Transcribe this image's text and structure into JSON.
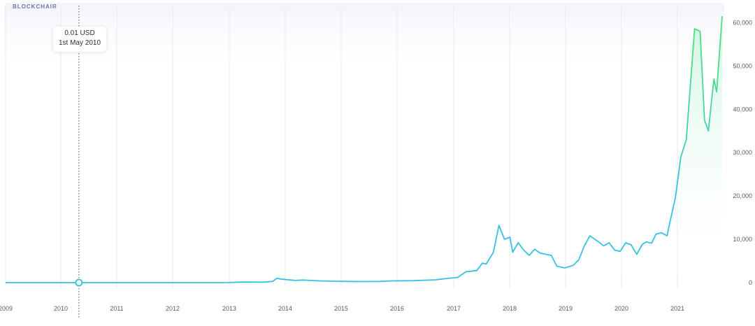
{
  "header": {
    "brand": "BLOCKCHAIR"
  },
  "tooltip": {
    "value": "0.01 USD",
    "date": "1st May 2010"
  },
  "colors": {
    "line": "#35c2e0",
    "line_high": "#4ee07a",
    "grid": "#e8eaee",
    "area": "#d9f7ec"
  },
  "chart_data": {
    "type": "line",
    "title": "",
    "xlabel": "",
    "ylabel": "",
    "x_ticks": [
      "2009",
      "2010",
      "2011",
      "2012",
      "2013",
      "2014",
      "2015",
      "2016",
      "2017",
      "2018",
      "2019",
      "2020",
      "2021"
    ],
    "y_ticks": [
      "0",
      "10,000",
      "20,000",
      "30,000",
      "40,000",
      "50,000",
      "60,000"
    ],
    "ylim": [
      0,
      62000
    ],
    "xlim": [
      2009.0,
      2021.85
    ],
    "grid": true,
    "highlight": {
      "x": 2010.33,
      "y": 0.01
    },
    "series": [
      {
        "points": [
          [
            2009.0,
            0
          ],
          [
            2010.33,
            0.01
          ],
          [
            2011.0,
            1
          ],
          [
            2012.0,
            5
          ],
          [
            2013.0,
            13
          ],
          [
            2013.3,
            130
          ],
          [
            2013.7,
            120
          ],
          [
            2013.85,
            300
          ],
          [
            2013.92,
            1000
          ],
          [
            2014.0,
            800
          ],
          [
            2014.1,
            700
          ],
          [
            2014.25,
            500
          ],
          [
            2014.4,
            600
          ],
          [
            2014.7,
            400
          ],
          [
            2015.0,
            300
          ],
          [
            2015.4,
            240
          ],
          [
            2015.8,
            280
          ],
          [
            2016.0,
            400
          ],
          [
            2016.4,
            450
          ],
          [
            2016.8,
            650
          ],
          [
            2017.0,
            950
          ],
          [
            2017.2,
            1200
          ],
          [
            2017.35,
            2500
          ],
          [
            2017.55,
            2800
          ],
          [
            2017.65,
            4500
          ],
          [
            2017.72,
            4300
          ],
          [
            2017.85,
            7000
          ],
          [
            2017.95,
            13200
          ],
          [
            2018.05,
            10000
          ],
          [
            2018.15,
            10500
          ],
          [
            2018.2,
            7000
          ],
          [
            2018.3,
            9200
          ],
          [
            2018.4,
            7500
          ],
          [
            2018.5,
            6300
          ],
          [
            2018.6,
            7700
          ],
          [
            2018.7,
            6800
          ],
          [
            2018.9,
            6300
          ],
          [
            2019.0,
            3800
          ],
          [
            2019.1,
            3500
          ],
          [
            2019.15,
            3400
          ],
          [
            2019.3,
            4000
          ],
          [
            2019.4,
            5300
          ],
          [
            2019.5,
            8500
          ],
          [
            2019.6,
            10800
          ],
          [
            2019.75,
            9500
          ],
          [
            2019.85,
            8500
          ],
          [
            2019.95,
            9200
          ],
          [
            2020.05,
            7500
          ],
          [
            2020.15,
            7200
          ],
          [
            2020.25,
            9200
          ],
          [
            2020.35,
            8700
          ],
          [
            2020.45,
            6500
          ],
          [
            2020.55,
            8800
          ],
          [
            2020.62,
            9400
          ],
          [
            2020.72,
            9100
          ],
          [
            2020.8,
            11200
          ],
          [
            2020.9,
            11500
          ],
          [
            2021.0,
            10800
          ],
          [
            2021.05,
            13800
          ],
          [
            2021.15,
            19500
          ],
          [
            2021.25,
            29000
          ],
          [
            2021.35,
            33000
          ],
          [
            2021.5,
            58600
          ],
          [
            2021.6,
            58000
          ],
          [
            2021.68,
            37500
          ],
          [
            2021.75,
            35000
          ],
          [
            2021.8,
            41000
          ],
          [
            2021.85,
            47000
          ],
          [
            2021.9,
            44000
          ],
          [
            2022.0,
            61500
          ]
        ]
      }
    ]
  }
}
